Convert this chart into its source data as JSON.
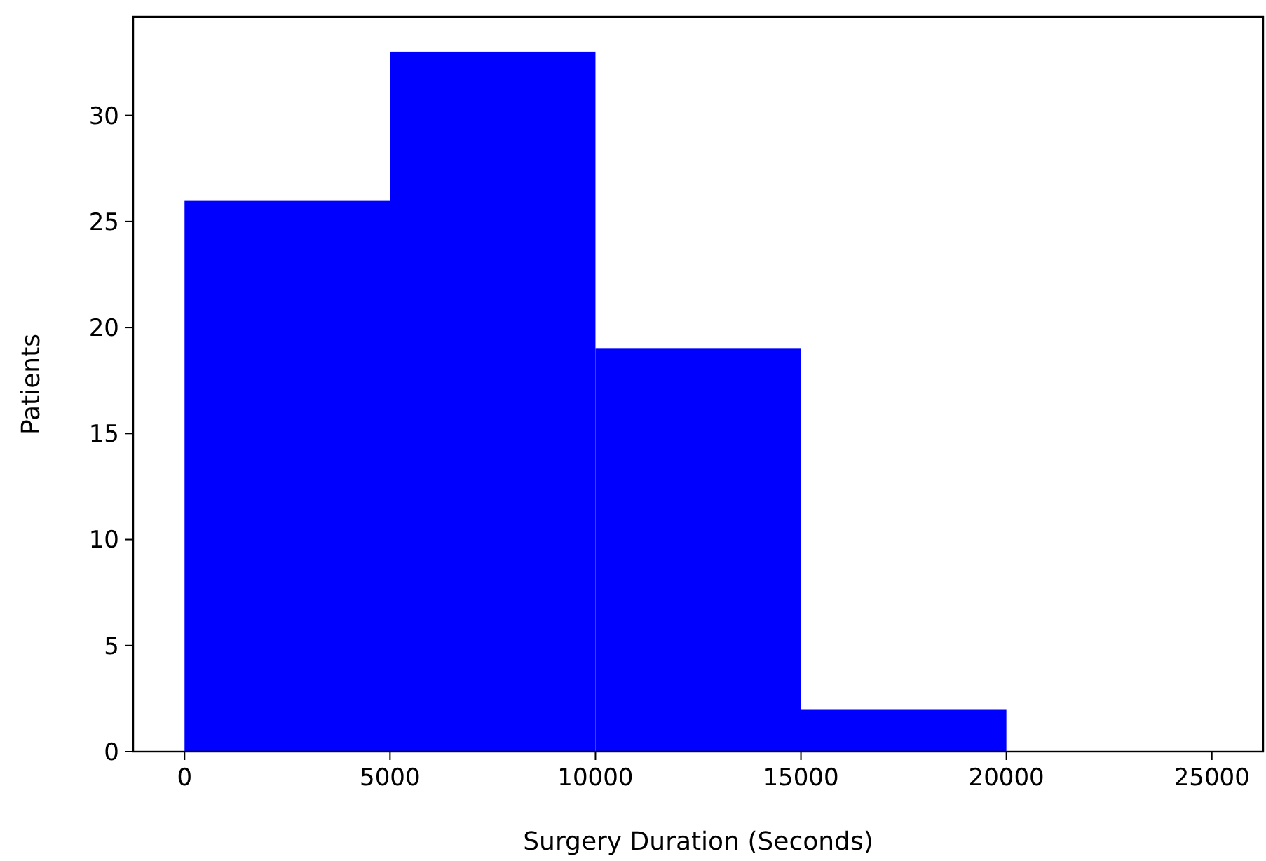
{
  "chart_data": {
    "type": "histogram",
    "xlabel": "Surgery Duration (Seconds)",
    "ylabel": "Patients",
    "bins": [
      0,
      5000,
      10000,
      15000,
      20000,
      25000
    ],
    "values": [
      26,
      33,
      19,
      2,
      0
    ],
    "color": "#0000ff",
    "xlim": [
      -1250,
      26250
    ],
    "xticks": [
      0,
      5000,
      10000,
      15000,
      20000,
      25000
    ],
    "ylim": [
      0,
      34.65
    ],
    "yticks": [
      0,
      5,
      10,
      15,
      20,
      25,
      30
    ],
    "grid": false
  }
}
